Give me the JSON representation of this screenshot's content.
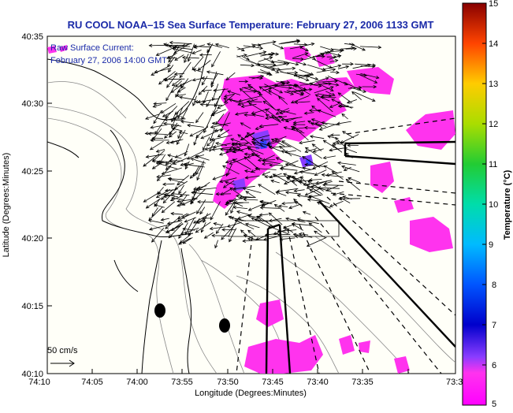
{
  "title": "RU COOL  NOAA–15  Sea Surface Temperature:  February 27, 2006 1133 GMT",
  "annotation": {
    "line1": "Raw Surface Current:",
    "line2": "February 27, 2006 14:00 GMT"
  },
  "x_axis": {
    "label": "Longitude (Degrees:Minutes)",
    "ticks": [
      "74:10",
      "74:05",
      "74:00",
      "73:55",
      "73:50",
      "73:45",
      "73:40",
      "73:35",
      "73:3"
    ]
  },
  "y_axis": {
    "label": "Latitude (Degrees:Minutes)",
    "ticks": [
      "40:35",
      "40:30",
      "40:25",
      "40:20",
      "40:15",
      "40:10"
    ]
  },
  "colorbar": {
    "label": "Temperature (°C)",
    "ticks": [
      "15",
      "14",
      "13",
      "12",
      "11",
      "10",
      "9",
      "8",
      "7",
      "6",
      "5"
    ],
    "min": 5,
    "max": 15
  },
  "scale_arrow": {
    "label": "50 cm/s"
  },
  "colors": {
    "title": "#1a2aa8",
    "sst_pink": "#ff33ee",
    "sst_purple": "#8a3cff",
    "sst_blue": "#3344ff",
    "vector": "#000000",
    "coast": "#000000",
    "bathymetry": "#888888"
  }
}
